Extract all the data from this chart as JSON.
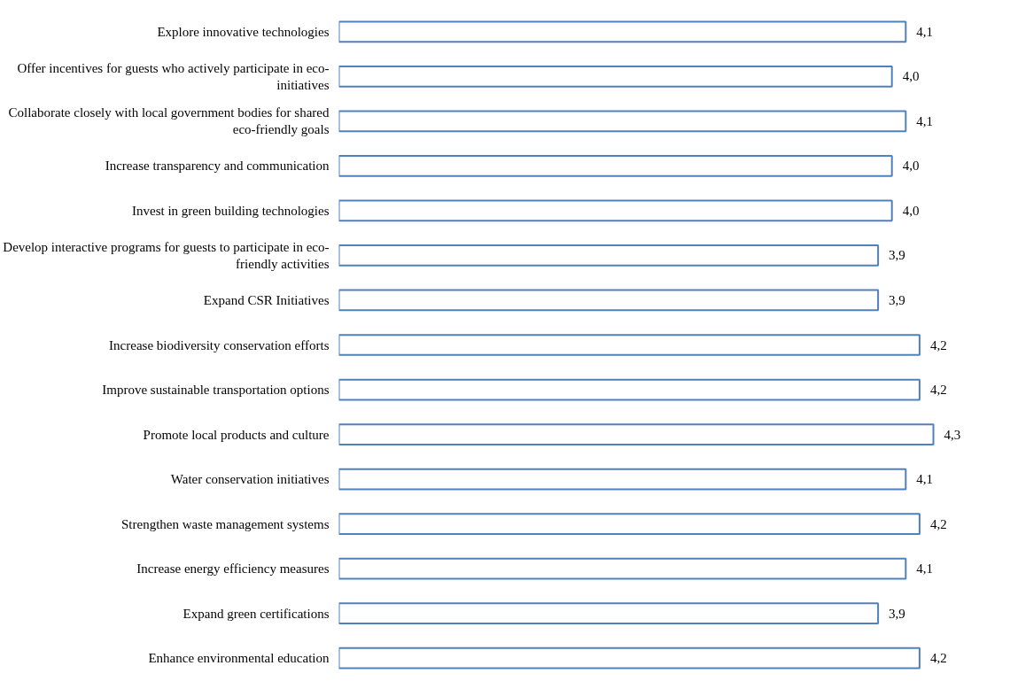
{
  "chart_data": {
    "type": "bar",
    "orientation": "horizontal",
    "categories": [
      "Explore innovative technologies",
      "Offer incentives for guests who actively participate in eco-initiatives",
      "Collaborate closely with local government bodies for shared eco-friendly goals",
      "Increase transparency and communication",
      "Invest in green building technologies",
      "Develop interactive programs for guests to participate in eco-friendly activities",
      "Expand CSR Initiatives",
      "Increase biodiversity conservation efforts",
      "Improve sustainable transportation options",
      "Promote local products and culture",
      "Water conservation initiatives",
      "Strengthen waste management systems",
      "Increase energy efficiency measures",
      "Expand green certifications",
      "Enhance environmental education"
    ],
    "values": [
      4.1,
      4.0,
      4.1,
      4.0,
      4.0,
      3.9,
      3.9,
      4.2,
      4.2,
      4.3,
      4.1,
      4.2,
      4.1,
      3.9,
      4.2
    ],
    "value_labels": [
      "4,1",
      "4,0",
      "4,1",
      "4,0",
      "4,0",
      "3,9",
      "3,9",
      "4,2",
      "4,2",
      "4,3",
      "4,1",
      "4,2",
      "4,1",
      "3,9",
      "4,2"
    ],
    "color": "#4f81bd",
    "tick_labels": "y",
    "grid": false
  }
}
